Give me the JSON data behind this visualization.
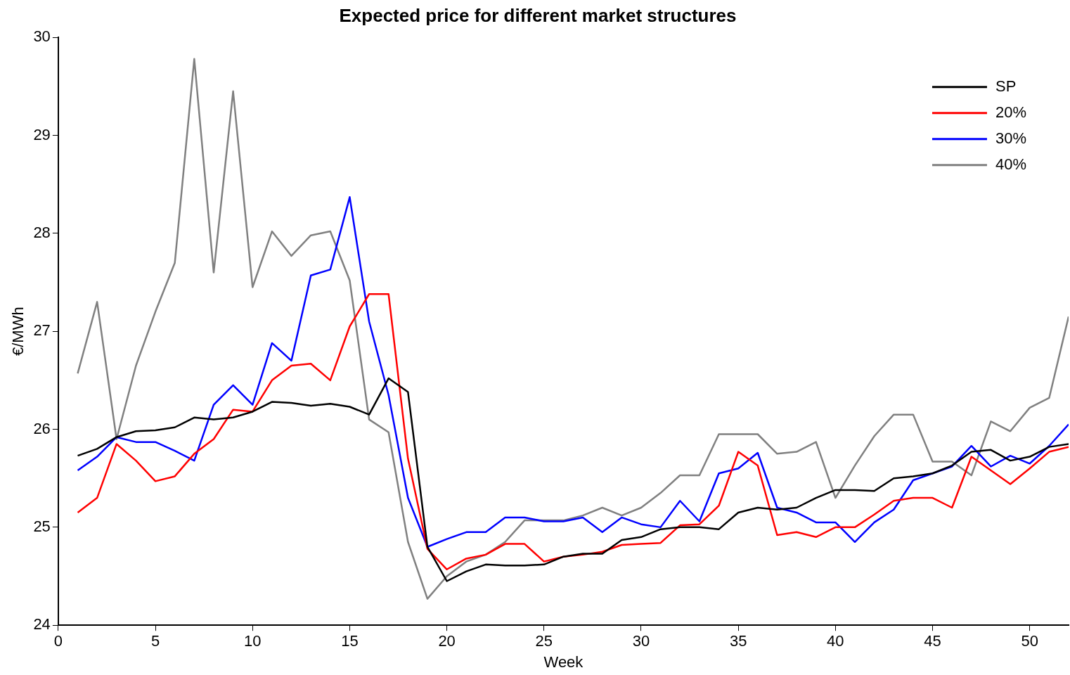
{
  "chart_data": {
    "type": "line",
    "title": "Expected price for different market structures",
    "xlabel": "Week",
    "ylabel": "€/MWh",
    "x": [
      1,
      2,
      3,
      4,
      5,
      6,
      7,
      8,
      9,
      10,
      11,
      12,
      13,
      14,
      15,
      16,
      17,
      18,
      19,
      20,
      21,
      22,
      23,
      24,
      25,
      26,
      27,
      28,
      29,
      30,
      31,
      32,
      33,
      34,
      35,
      36,
      37,
      38,
      39,
      40,
      41,
      42,
      43,
      44,
      45,
      46,
      47,
      48,
      49,
      50,
      51,
      52
    ],
    "xlim": [
      0,
      52
    ],
    "xticks": [
      0,
      5,
      10,
      15,
      20,
      25,
      30,
      35,
      40,
      45,
      50
    ],
    "ylim": [
      24,
      30
    ],
    "yticks": [
      24,
      25,
      26,
      27,
      28,
      29,
      30
    ],
    "grid": false,
    "legend": "top right",
    "marker": "none",
    "line_style": "solid",
    "series": [
      {
        "name": "SP",
        "color": "#000000",
        "values": [
          25.73,
          25.8,
          25.92,
          25.98,
          25.99,
          26.02,
          26.12,
          26.1,
          26.12,
          26.18,
          26.28,
          26.27,
          26.24,
          26.26,
          26.23,
          26.15,
          26.52,
          26.38,
          24.8,
          24.45,
          24.55,
          24.62,
          24.61,
          24.61,
          24.62,
          24.7,
          24.73,
          24.73,
          24.87,
          24.9,
          24.98,
          25.0,
          25.0,
          24.98,
          25.15,
          25.2,
          25.18,
          25.2,
          25.3,
          25.38,
          25.38,
          25.37,
          25.5,
          25.52,
          25.55,
          25.63,
          25.77,
          25.79,
          25.68,
          25.72,
          25.82,
          25.85
        ]
      },
      {
        "name": "20%",
        "color": "#ff0000",
        "values": [
          25.15,
          25.3,
          25.85,
          25.68,
          25.47,
          25.52,
          25.75,
          25.9,
          26.2,
          26.18,
          26.5,
          26.65,
          26.67,
          26.5,
          27.05,
          27.38,
          27.38,
          25.7,
          24.78,
          24.57,
          24.68,
          24.72,
          24.83,
          24.83,
          24.65,
          24.7,
          24.72,
          24.75,
          24.82,
          24.83,
          24.84,
          25.02,
          25.03,
          25.22,
          25.77,
          25.63,
          24.92,
          24.95,
          24.9,
          25.0,
          25.0,
          25.13,
          25.27,
          25.3,
          25.3,
          25.2,
          25.72,
          25.58,
          25.44,
          25.6,
          25.77,
          25.82
        ]
      },
      {
        "name": "30%",
        "color": "#0000ff",
        "values": [
          25.58,
          25.72,
          25.92,
          25.87,
          25.87,
          25.78,
          25.68,
          26.25,
          26.45,
          26.25,
          26.88,
          26.7,
          27.57,
          27.63,
          28.37,
          27.1,
          26.35,
          25.3,
          24.8,
          24.88,
          24.95,
          24.95,
          25.1,
          25.1,
          25.06,
          25.06,
          25.1,
          24.95,
          25.1,
          25.03,
          25.0,
          25.27,
          25.06,
          25.55,
          25.6,
          25.76,
          25.2,
          25.15,
          25.05,
          25.05,
          24.85,
          25.05,
          25.18,
          25.48,
          25.55,
          25.62,
          25.83,
          25.62,
          25.73,
          25.65,
          25.83,
          26.05
        ]
      },
      {
        "name": "40%",
        "color": "#808080",
        "values": [
          26.57,
          27.3,
          25.9,
          26.65,
          27.2,
          27.7,
          29.78,
          27.6,
          29.45,
          27.45,
          28.02,
          27.77,
          27.98,
          28.02,
          27.52,
          26.1,
          25.97,
          24.85,
          24.27,
          24.5,
          24.65,
          24.72,
          24.85,
          25.07,
          25.07,
          25.07,
          25.12,
          25.2,
          25.12,
          25.2,
          25.35,
          25.53,
          25.53,
          25.95,
          25.95,
          25.95,
          25.75,
          25.77,
          25.87,
          25.3,
          25.63,
          25.93,
          26.15,
          26.15,
          25.67,
          25.67,
          25.53,
          26.08,
          25.98,
          26.22,
          26.32,
          27.15
        ]
      }
    ]
  }
}
